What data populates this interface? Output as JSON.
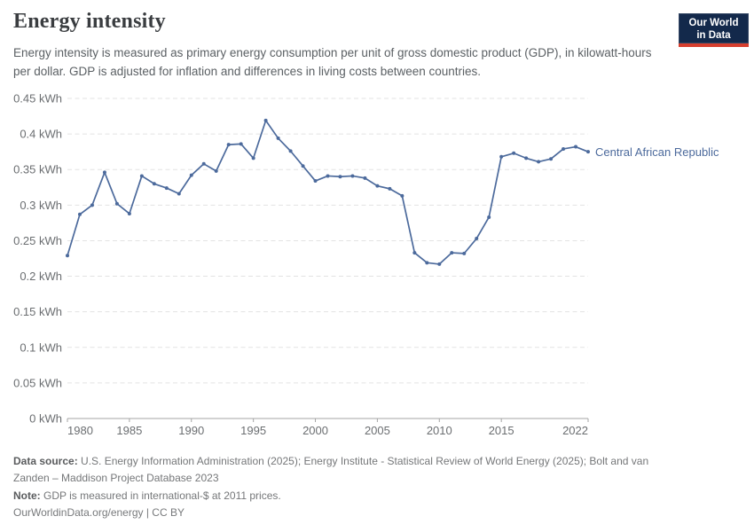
{
  "header": {
    "title": "Energy intensity",
    "subtitle": "Energy intensity is measured as primary energy consumption per unit of gross domestic product (GDP), in kilowatt-hours per dollar. GDP is adjusted for inflation and differences in living costs between countries.",
    "logo": {
      "line1": "Our World",
      "line2": "in Data",
      "bg_color": "#13294B",
      "stripe_color": "#D63E2E"
    }
  },
  "chart_data": {
    "type": "line",
    "title": "Energy intensity",
    "unit": "kWh",
    "xlabel": "",
    "ylabel": "",
    "xlim": [
      1980,
      2022
    ],
    "ylim": [
      0,
      0.45
    ],
    "xticks": [
      1980,
      1985,
      1990,
      1995,
      2000,
      2005,
      2010,
      2015,
      2022
    ],
    "yticks": [
      0,
      0.05,
      0.1,
      0.15,
      0.2,
      0.25,
      0.3,
      0.35,
      0.4,
      0.45
    ],
    "grid": "horizontal-dashed",
    "legend_position": "right-of-line-end",
    "colors": {
      "gridline": "#e3e3e3",
      "axis": "#a5a5a5",
      "tick_label": "#6b6e71"
    },
    "series": [
      {
        "name": "Central African Republic",
        "color": "#4C6A9C",
        "x": [
          1980,
          1981,
          1982,
          1983,
          1984,
          1985,
          1986,
          1987,
          1988,
          1989,
          1990,
          1991,
          1992,
          1993,
          1994,
          1995,
          1996,
          1997,
          1998,
          1999,
          2000,
          2001,
          2002,
          2003,
          2004,
          2005,
          2006,
          2007,
          2008,
          2009,
          2010,
          2011,
          2012,
          2013,
          2014,
          2015,
          2016,
          2017,
          2018,
          2019,
          2020,
          2021,
          2022
        ],
        "values": [
          0.229,
          0.287,
          0.3,
          0.346,
          0.302,
          0.288,
          0.341,
          0.33,
          0.324,
          0.316,
          0.342,
          0.358,
          0.348,
          0.385,
          0.386,
          0.366,
          0.419,
          0.394,
          0.376,
          0.355,
          0.334,
          0.341,
          0.34,
          0.341,
          0.338,
          0.327,
          0.323,
          0.313,
          0.233,
          0.219,
          0.217,
          0.233,
          0.232,
          0.253,
          0.283,
          0.368,
          0.373,
          0.366,
          0.361,
          0.365,
          0.379,
          0.382,
          0.375
        ]
      }
    ]
  },
  "footer": {
    "datasource_label": "Data source:",
    "datasource_text": " U.S. Energy Information Administration (2025); Energy Institute - Statistical Review of World Energy (2025); Bolt and van Zanden – Maddison Project Database 2023",
    "note_label": "Note:",
    "note_text": " GDP is measured in international-$ at 2011 prices.",
    "license": "OurWorldinData.org/energy | CC BY"
  }
}
